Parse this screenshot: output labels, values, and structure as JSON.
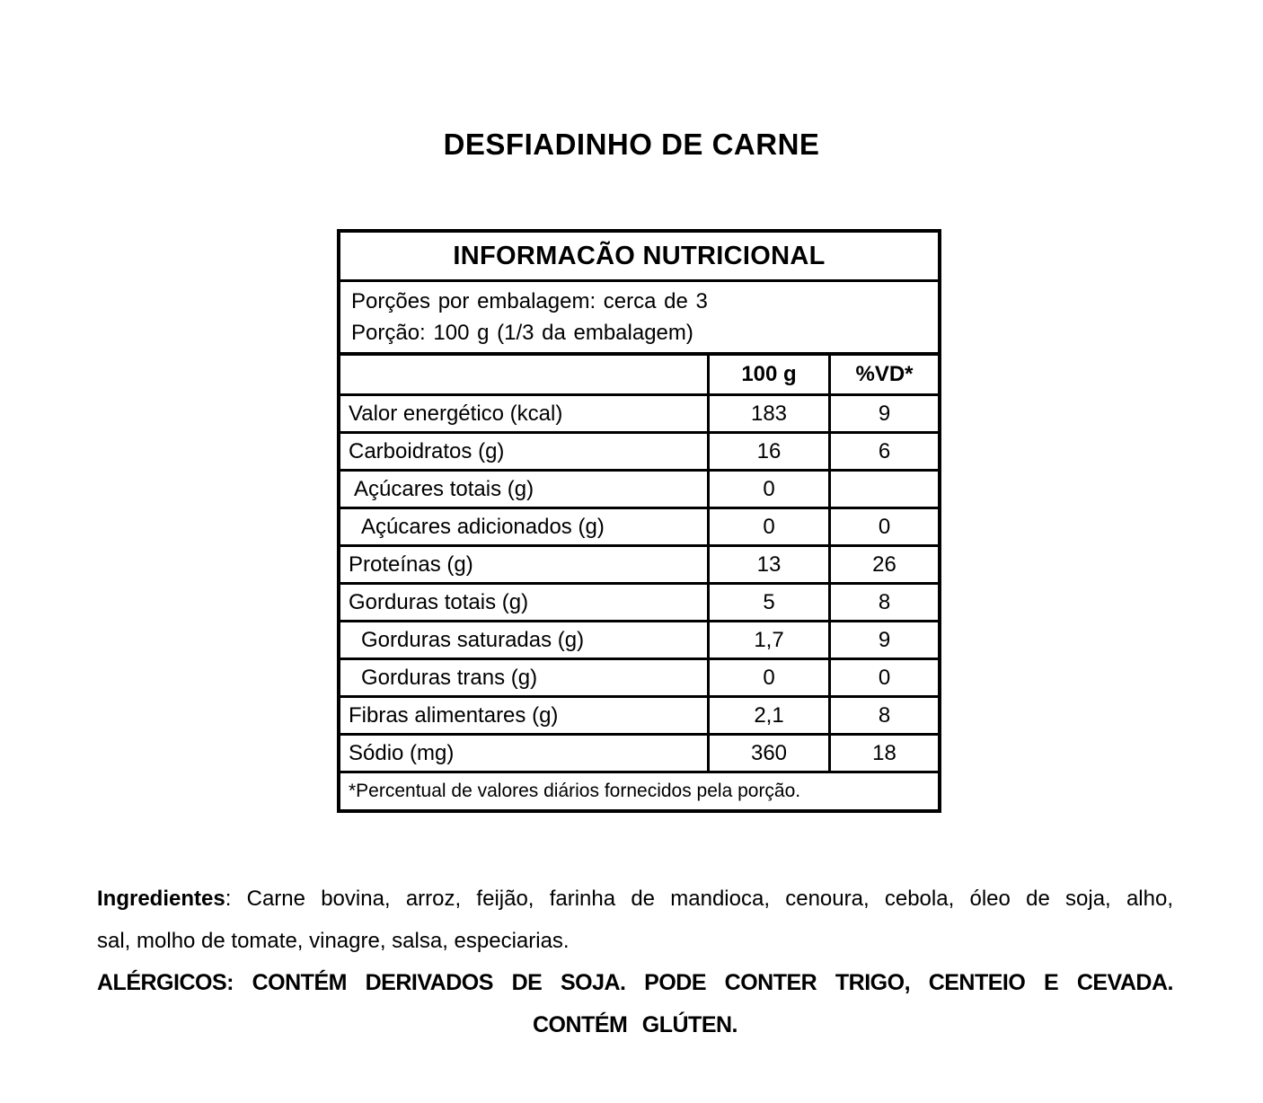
{
  "page": {
    "title": "DESFIADINHO DE CARNE"
  },
  "nutrition_table": {
    "header": "INFORMACÃO NUTRICIONAL",
    "servings_line1": "Porções por embalagem: cerca de 3",
    "servings_line2": "Porção: 100 g (1/3 da embalagem)",
    "columns": {
      "amount": "100 g",
      "dv": "%VD*"
    },
    "rows": [
      {
        "label": "Valor energético (kcal)",
        "amount": "183",
        "dv": "9"
      },
      {
        "label": "Carboidratos (g)",
        "amount": "16",
        "dv": "6"
      },
      {
        "label": "Açúcares totais (g)",
        "amount": "0",
        "dv": ""
      },
      {
        "label": "Açúcares adicionados (g)",
        "amount": "0",
        "dv": "0"
      },
      {
        "label": "Proteínas (g)",
        "amount": "13",
        "dv": "26"
      },
      {
        "label": "Gorduras totais (g)",
        "amount": "5",
        "dv": "8"
      },
      {
        "label": "Gorduras saturadas (g)",
        "amount": "1,7",
        "dv": "9"
      },
      {
        "label": "Gorduras trans (g)",
        "amount": "0",
        "dv": "0"
      },
      {
        "label": "Fibras alimentares (g)",
        "amount": "2,1",
        "dv": "8"
      },
      {
        "label": "Sódio (mg)",
        "amount": "360",
        "dv": "18"
      }
    ],
    "footnote": "*Percentual de valores diários fornecidos pela porção."
  },
  "ingredients": {
    "label": "Ingredientes",
    "line1_rest": ": Carne bovina, arroz, feijão, farinha de mandioca, cenoura, cebola, óleo de soja, alho,",
    "line2": "sal, molho de tomate, vinagre, salsa, especiarias."
  },
  "allergens": {
    "line1": "ALÉRGICOS: CONTÉM DERIVADOS DE SOJA. PODE CONTER TRIGO, CENTEIO E CEVADA.",
    "line2": "CONTÉM GLÚTEN."
  }
}
